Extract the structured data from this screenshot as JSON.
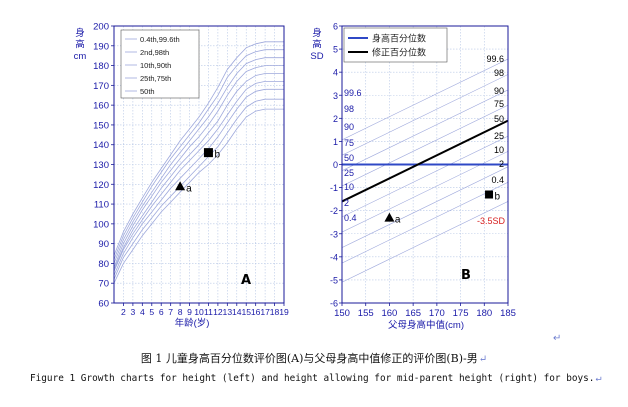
{
  "colors": {
    "axis_text": "#1a1aa8",
    "frame": "#1a1a9a",
    "grid": "#b8c8e6",
    "curve": "#9fa9dc",
    "percentile_line": "#2f48c6",
    "corrected_line": "#000000",
    "threshold_text": "#d62020",
    "marker": "#000000"
  },
  "chart_data": [
    {
      "type": "line",
      "ylabel": "身高cm",
      "xlabel": "年龄(岁)",
      "panel_letter": "A",
      "xlim": [
        1,
        19
      ],
      "ylim": [
        60,
        200
      ],
      "xticks": [
        "2",
        "3",
        "4",
        "5",
        "6",
        "7",
        "8",
        "9",
        "10",
        "11",
        "12",
        "13",
        "14",
        "15",
        "16",
        "17",
        "18",
        "19"
      ],
      "yticks": [
        "60",
        "70",
        "80",
        "90",
        "100",
        "110",
        "120",
        "130",
        "140",
        "150",
        "160",
        "170",
        "180",
        "190",
        "200"
      ],
      "legend": {
        "placement": "top-left",
        "items": [
          "0.4th,99.6th",
          "2nd,98th",
          "10th,90th",
          "25th,75th",
          "50th"
        ]
      },
      "x": [
        1,
        2,
        3,
        4,
        5,
        6,
        7,
        8,
        9,
        10,
        11,
        12,
        13,
        14,
        15,
        16,
        17,
        18,
        19
      ],
      "series": [
        {
          "name": "0.4th",
          "values": [
            70,
            80,
            87,
            94,
            100,
            106,
            111,
            116,
            121,
            126,
            130,
            135,
            141,
            148,
            154,
            157,
            158,
            158,
            158
          ]
        },
        {
          "name": "2nd",
          "values": [
            72,
            83,
            90,
            97,
            103,
            109,
            114,
            119,
            124,
            129,
            134,
            139,
            146,
            153,
            159,
            162,
            163,
            163,
            163
          ]
        },
        {
          "name": "10th",
          "values": [
            74,
            85,
            93,
            100,
            106,
            112,
            118,
            123,
            128,
            133,
            138,
            144,
            151,
            158,
            164,
            167,
            168,
            168,
            168
          ]
        },
        {
          "name": "25th",
          "values": [
            76,
            87,
            95,
            102,
            109,
            115,
            121,
            127,
            132,
            137,
            142,
            148,
            155,
            162,
            168,
            171,
            172,
            172,
            172
          ]
        },
        {
          "name": "50th",
          "values": [
            77,
            88,
            97,
            104,
            111,
            118,
            124,
            130,
            135,
            140,
            146,
            152,
            160,
            167,
            172,
            175,
            176,
            176,
            176
          ]
        },
        {
          "name": "75th",
          "values": [
            78,
            90,
            99,
            107,
            114,
            121,
            127,
            133,
            139,
            144,
            150,
            157,
            165,
            172,
            177,
            179,
            180,
            180,
            180
          ]
        },
        {
          "name": "90th",
          "values": [
            80,
            92,
            101,
            109,
            116,
            123,
            130,
            136,
            142,
            148,
            154,
            161,
            169,
            176,
            181,
            183,
            184,
            184,
            184
          ]
        },
        {
          "name": "98th",
          "values": [
            82,
            94,
            103,
            111,
            119,
            126,
            133,
            139,
            145,
            151,
            158,
            165,
            174,
            180,
            185,
            187,
            188,
            188,
            188
          ]
        },
        {
          "name": "99.6th",
          "values": [
            84,
            96,
            105,
            113,
            121,
            128,
            135,
            142,
            148,
            154,
            161,
            169,
            178,
            184,
            189,
            191,
            192,
            192,
            192
          ]
        }
      ],
      "points": [
        {
          "label": "a",
          "marker": "triangle",
          "x": 8.0,
          "y": 119
        },
        {
          "label": "b",
          "marker": "square",
          "x": 11.0,
          "y": 136
        }
      ]
    },
    {
      "type": "line",
      "ylabel": "身高SD",
      "xlabel": "父母身高中值(cm)",
      "panel_letter": "B",
      "xlim": [
        150,
        185
      ],
      "ylim": [
        -6,
        6
      ],
      "xticks": [
        "150",
        "155",
        "160",
        "165",
        "170",
        "175",
        "180",
        "185"
      ],
      "yticks": [
        "-6",
        "-5",
        "-4",
        "-3",
        "-2",
        "-1",
        "0",
        "1",
        "2",
        "3",
        "4",
        "5",
        "6"
      ],
      "legend": {
        "placement": "top-left",
        "items": [
          {
            "label": "身高百分位数",
            "color": "#2f48c6"
          },
          {
            "label": "修正百分位数",
            "color": "#000000"
          }
        ]
      },
      "left_percentile_labels": [
        "99.6",
        "98",
        "90",
        "75",
        "50",
        "25",
        "10",
        "2",
        "0.4"
      ],
      "right_percentile_labels": [
        "99.6",
        "98",
        "90",
        "75",
        "50",
        "25",
        "10",
        "2",
        "0.4"
      ],
      "threshold_label": "-3.5SD",
      "corrected_line": {
        "x": [
          150,
          185
        ],
        "y": [
          -1.6,
          1.9
        ]
      },
      "horizontal_line_y": 0,
      "parallel_offsets_sd": [
        -3.5,
        -2.67,
        -2.0,
        -1.33,
        -0.67,
        0,
        0.67,
        1.33,
        2.0,
        2.67
      ],
      "points": [
        {
          "label": "a",
          "marker": "triangle",
          "x": 160,
          "y": -2.3
        },
        {
          "label": "b",
          "marker": "square",
          "x": 181,
          "y": -1.3
        }
      ]
    }
  ],
  "caption_cn": "图 1 儿童身高百分位数评价图(A)与父母身高中值修正的评价图(B)-男",
  "caption_en": "Figure 1 Growth charts for height (left) and height allowing for mid-parent height (right) for boys.",
  "return_mark": "↵"
}
